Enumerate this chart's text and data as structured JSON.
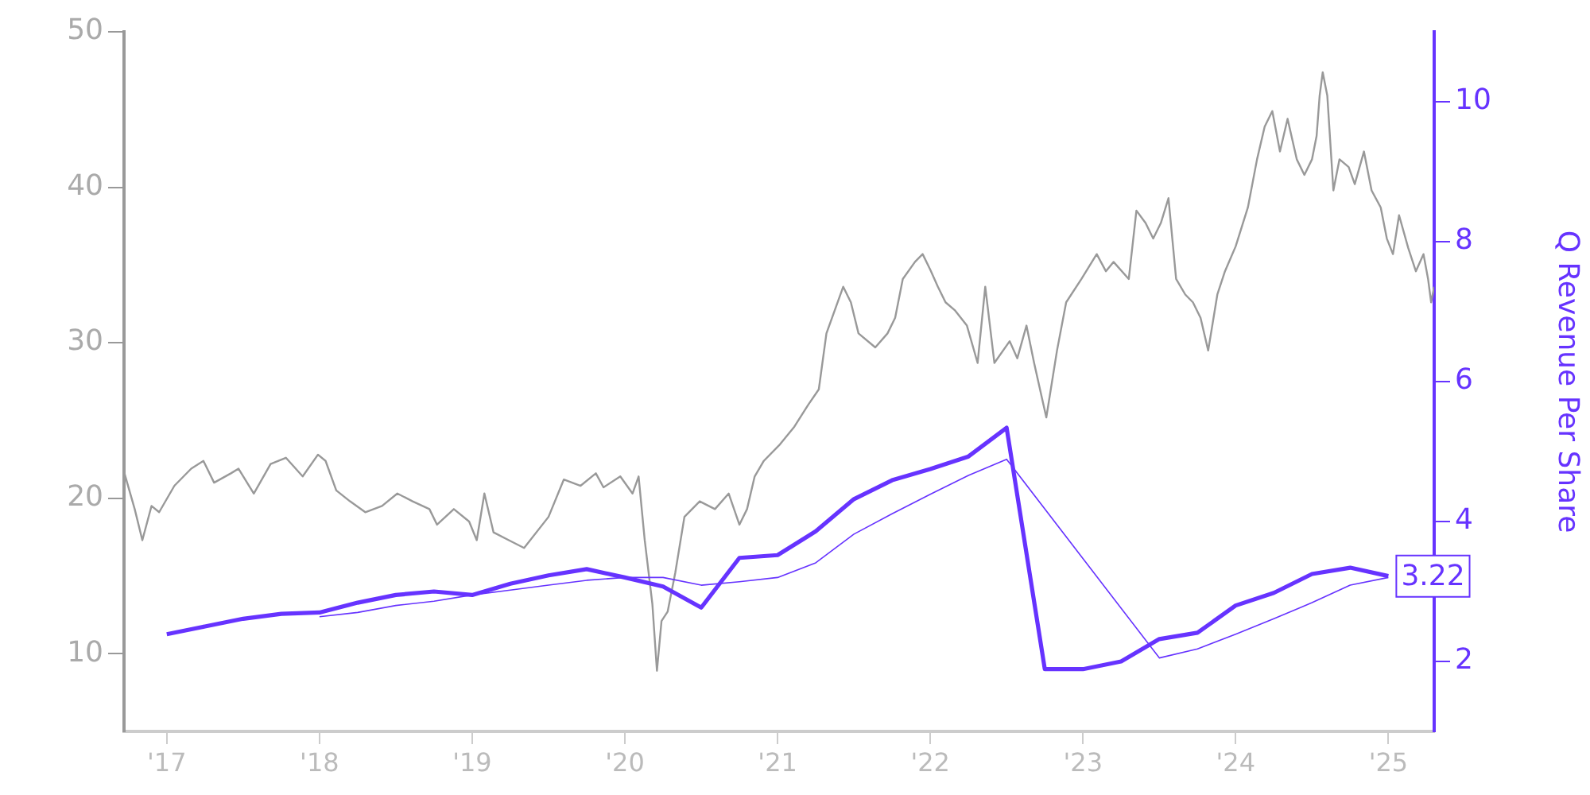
{
  "chart_data": {
    "type": "line",
    "y2label": "Q Revenue Per Share",
    "marker": "none",
    "legend": false,
    "grid": false,
    "xlim": [
      2016.72,
      2025.3
    ],
    "xticks": [
      {
        "value": 2017,
        "label": "'17"
      },
      {
        "value": 2018,
        "label": "'18"
      },
      {
        "value": 2019,
        "label": "'19"
      },
      {
        "value": 2020,
        "label": "'20"
      },
      {
        "value": 2021,
        "label": "'21"
      },
      {
        "value": 2022,
        "label": "'22"
      },
      {
        "value": 2023,
        "label": "'23"
      },
      {
        "value": 2024,
        "label": "'24"
      },
      {
        "value": 2025,
        "label": "'25"
      }
    ],
    "ylim": [
      5,
      50
    ],
    "yticks": [
      10,
      20,
      30,
      40,
      50
    ],
    "y2lim": [
      1,
      11
    ],
    "y2ticks": [
      2,
      4,
      6,
      8,
      10
    ],
    "series": [
      {
        "color": "#999999",
        "axis": "y",
        "x": [
          2016.72,
          2016.79,
          2016.84,
          2016.9,
          2016.95,
          2017.05,
          2017.16,
          2017.24,
          2017.31,
          2017.42,
          2017.47,
          2017.57,
          2017.68,
          2017.78,
          2017.89,
          2017.99,
          2018.04,
          2018.11,
          2018.2,
          2018.3,
          2018.41,
          2018.51,
          2018.61,
          2018.72,
          2018.77,
          2018.88,
          2018.98,
          2019.03,
          2019.08,
          2019.14,
          2019.24,
          2019.34,
          2019.5,
          2019.6,
          2019.71,
          2019.81,
          2019.86,
          2019.97,
          2020.05,
          2020.09,
          2020.13,
          2020.18,
          2020.21,
          2020.24,
          2020.28,
          2020.33,
          2020.39,
          2020.49,
          2020.59,
          2020.68,
          2020.75,
          2020.8,
          2020.85,
          2020.91,
          2021.01,
          2021.11,
          2021.2,
          2021.27,
          2021.32,
          2021.43,
          2021.48,
          2021.53,
          2021.64,
          2021.72,
          2021.77,
          2021.82,
          2021.9,
          2021.95,
          2022,
          2022.05,
          2022.1,
          2022.16,
          2022.24,
          2022.31,
          2022.36,
          2022.42,
          2022.52,
          2022.57,
          2022.63,
          2022.68,
          2022.73,
          2022.76,
          2022.83,
          2022.89,
          2022.99,
          2023.09,
          2023.15,
          2023.2,
          2023.3,
          2023.35,
          2023.41,
          2023.46,
          2023.51,
          2023.56,
          2023.61,
          2023.67,
          2023.72,
          2023.77,
          2023.82,
          2023.88,
          2023.93,
          2024,
          2024.08,
          2024.14,
          2024.19,
          2024.24,
          2024.29,
          2024.34,
          2024.4,
          2024.45,
          2024.5,
          2024.53,
          2024.55,
          2024.57,
          2024.6,
          2024.64,
          2024.68,
          2024.74,
          2024.78,
          2024.84,
          2024.89,
          2024.95,
          2024.99,
          2025.03,
          2025.07,
          2025.13,
          2025.18,
          2025.23,
          2025.26,
          2025.28,
          2025.3
        ],
        "values": [
          21.7,
          19.3,
          17.3,
          19.5,
          19.1,
          20.8,
          21.9,
          22.4,
          21,
          21.6,
          21.9,
          20.3,
          22.2,
          22.6,
          21.4,
          22.8,
          22.4,
          20.5,
          19.8,
          19.1,
          19.5,
          20.3,
          19.8,
          19.3,
          18.3,
          19.3,
          18.5,
          17.3,
          20.3,
          17.8,
          17.3,
          16.8,
          18.8,
          21.2,
          20.8,
          21.6,
          20.7,
          21.4,
          20.3,
          21.4,
          17.3,
          13.2,
          8.9,
          12.1,
          12.7,
          15.2,
          18.8,
          19.8,
          19.3,
          20.3,
          18.3,
          19.3,
          21.4,
          22.4,
          23.4,
          24.6,
          26,
          27,
          30.6,
          33.6,
          32.6,
          30.6,
          29.7,
          30.6,
          31.6,
          34.1,
          35.2,
          35.7,
          34.7,
          33.6,
          32.6,
          32.1,
          31.1,
          28.7,
          33.6,
          28.7,
          30.1,
          29,
          31.1,
          28.7,
          26.5,
          25.2,
          29.5,
          32.6,
          34.1,
          35.7,
          34.6,
          35.2,
          34.1,
          38.5,
          37.7,
          36.7,
          37.7,
          39.3,
          34.1,
          33.1,
          32.6,
          31.6,
          29.5,
          33.1,
          34.6,
          36.2,
          38.7,
          41.8,
          43.9,
          44.9,
          42.3,
          44.4,
          41.8,
          40.8,
          41.8,
          43.3,
          45.9,
          47.4,
          45.9,
          39.8,
          41.8,
          41.3,
          40.2,
          42.3,
          39.8,
          38.7,
          36.7,
          35.7,
          38.2,
          36.1,
          34.6,
          35.7,
          34.1,
          32.6,
          33.6
        ]
      },
      {
        "color": "#6633ff",
        "axis": "y2",
        "x": [
          2017,
          2017.25,
          2017.5,
          2017.75,
          2018,
          2018.25,
          2018.5,
          2018.75,
          2019,
          2019.25,
          2019.5,
          2019.75,
          2020,
          2020.25,
          2020.5,
          2020.75,
          2021,
          2021.25,
          2021.5,
          2021.75,
          2022,
          2022.25,
          2022.5,
          2022.75,
          2023,
          2023.25,
          2023.5,
          2023.75,
          2024,
          2024.25,
          2024.5,
          2024.75,
          2025
        ],
        "values": [
          2.39,
          2.5,
          2.61,
          2.68,
          2.7,
          2.84,
          2.95,
          3,
          2.95,
          3.11,
          3.23,
          3.32,
          3.2,
          3.07,
          2.77,
          3.48,
          3.52,
          3.86,
          4.32,
          4.59,
          4.75,
          4.93,
          5.34,
          1.89,
          1.89,
          2,
          2.32,
          2.41,
          2.8,
          2.98,
          3.25,
          3.34,
          3.22
        ],
        "value_labels": [
          null,
          null,
          null,
          null,
          null,
          null,
          null,
          null,
          null,
          null,
          null,
          null,
          null,
          null,
          null,
          null,
          null,
          null,
          null,
          null,
          null,
          null,
          null,
          null,
          null,
          null,
          null,
          null,
          null,
          null,
          null,
          null,
          "3.22"
        ]
      },
      {
        "color": "#6633ff",
        "axis": "y2",
        "x": [
          2018,
          2018.25,
          2018.5,
          2018.75,
          2019,
          2019.25,
          2019.5,
          2019.75,
          2020,
          2020.25,
          2020.5,
          2020.75,
          2021,
          2021.25,
          2021.5,
          2021.75,
          2022,
          2022.25,
          2022.5,
          2023.5,
          2023.75,
          2024,
          2024.25,
          2024.5,
          2024.75,
          2025
        ],
        "values": [
          2.64,
          2.7,
          2.8,
          2.86,
          2.95,
          3.02,
          3.09,
          3.16,
          3.2,
          3.2,
          3.09,
          3.14,
          3.2,
          3.41,
          3.82,
          4.11,
          4.39,
          4.66,
          4.89,
          2.05,
          2.18,
          2.39,
          2.61,
          2.84,
          3.09,
          3.2
        ]
      }
    ]
  }
}
